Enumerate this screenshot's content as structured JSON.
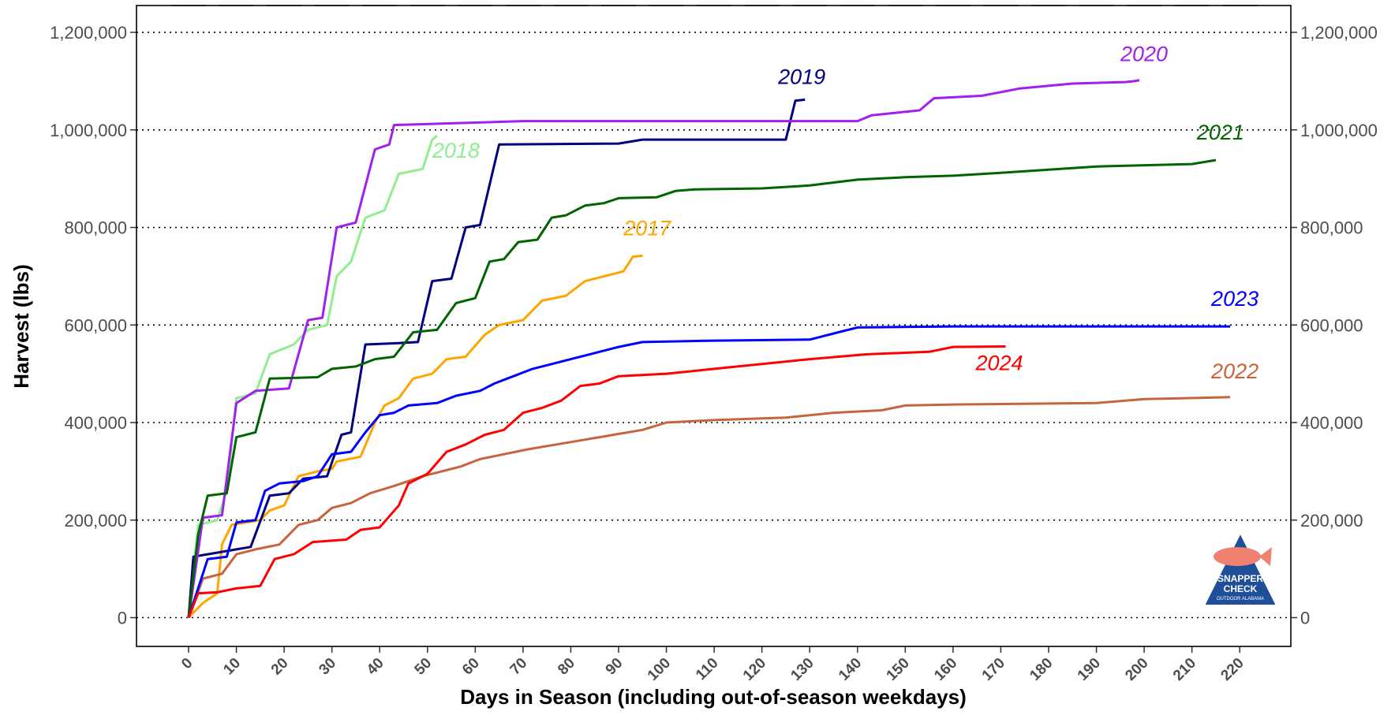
{
  "chart_data": {
    "type": "line",
    "y_label": "Harvest (lbs)",
    "x_label": "Days in Season (including out-of-season weekdays)",
    "xlim": [
      -10.9,
      230.7
    ],
    "xticks": [
      0,
      10,
      20,
      30,
      40,
      50,
      60,
      70,
      80,
      90,
      100,
      110,
      120,
      130,
      140,
      150,
      160,
      170,
      180,
      190,
      200,
      210,
      220
    ],
    "ylim": [
      -59000,
      1255000
    ],
    "yticks": [
      {
        "value": 0,
        "label": "0"
      },
      {
        "value": 200000,
        "label": "200,000"
      },
      {
        "value": 400000,
        "label": "400,000"
      },
      {
        "value": 600000,
        "label": "600,000"
      },
      {
        "value": 800000,
        "label": "800,000"
      },
      {
        "value": 1000000,
        "label": "1,000,000"
      },
      {
        "value": 1200000,
        "label": "1,200,000"
      }
    ],
    "y2lim": [
      -59000,
      1255000
    ],
    "y2ticks": [
      {
        "value": 0,
        "label": "0"
      },
      {
        "value": 200000,
        "label": "200,000"
      },
      {
        "value": 400000,
        "label": "400,000"
      },
      {
        "value": 600000,
        "label": "600,000"
      },
      {
        "value": 800000,
        "label": "800,000"
      },
      {
        "value": 1000000,
        "label": "1,000,000"
      },
      {
        "value": 1200000,
        "label": "1,200,000"
      }
    ],
    "grid": true,
    "logo": {
      "line1": "SNAPPER",
      "line2": "CHECK",
      "line3": "OUTDOOR ALABAMA"
    },
    "series": [
      {
        "name": "2017",
        "color": "#ffa500",
        "x": [
          0,
          3,
          6,
          7,
          9,
          15,
          17,
          20,
          23,
          27,
          30,
          31,
          36,
          39,
          41,
          44,
          47,
          51,
          54,
          58,
          62,
          65,
          70,
          74,
          79,
          83,
          87,
          91,
          93,
          95
        ],
        "values": [
          0,
          30000,
          50000,
          150000,
          190000,
          200000,
          220000,
          230000,
          290000,
          300000,
          305000,
          320000,
          330000,
          400000,
          435000,
          450000,
          490000,
          500000,
          530000,
          535000,
          580000,
          600000,
          610000,
          650000,
          660000,
          690000,
          700000,
          710000,
          740000,
          742000
        ]
      },
      {
        "name": "2018",
        "color": "#90ee90",
        "x": [
          0,
          2,
          6,
          8,
          10,
          14,
          17,
          22,
          25,
          29,
          31,
          34,
          37,
          41,
          44,
          49,
          51,
          52
        ],
        "values": [
          0,
          190000,
          200000,
          260000,
          450000,
          460000,
          540000,
          560000,
          590000,
          600000,
          700000,
          730000,
          820000,
          835000,
          910000,
          920000,
          980000,
          988000
        ]
      },
      {
        "name": "2019",
        "color": "#000080",
        "x": [
          0,
          1,
          4,
          7,
          10,
          13,
          17,
          21,
          24,
          29,
          32,
          34,
          37,
          44,
          48,
          51,
          55,
          58,
          61,
          65,
          90,
          95,
          125,
          127,
          129
        ],
        "values": [
          0,
          125000,
          130000,
          135000,
          140000,
          145000,
          250000,
          255000,
          285000,
          290000,
          375000,
          380000,
          560000,
          563000,
          565000,
          690000,
          695000,
          800000,
          805000,
          970000,
          972000,
          980000,
          980000,
          1060000,
          1062000
        ]
      },
      {
        "name": "2020",
        "color": "#a020f0",
        "x": [
          0,
          3,
          7,
          10,
          14,
          21,
          25,
          28,
          31,
          35,
          39,
          42,
          43,
          60,
          70,
          140,
          143,
          148,
          153,
          156,
          166,
          174,
          185,
          196,
          198,
          199
        ],
        "values": [
          0,
          205000,
          210000,
          440000,
          465000,
          470000,
          610000,
          615000,
          800000,
          810000,
          960000,
          970000,
          1010000,
          1015000,
          1018000,
          1018000,
          1030000,
          1035000,
          1040000,
          1065000,
          1070000,
          1085000,
          1095000,
          1098000,
          1100000,
          1102000
        ]
      },
      {
        "name": "2021",
        "color": "#006400",
        "x": [
          0,
          2,
          4,
          8,
          10,
          14,
          17,
          27,
          30,
          35,
          39,
          43,
          47,
          52,
          56,
          60,
          63,
          66,
          69,
          73,
          76,
          79,
          83,
          87,
          90,
          98,
          102,
          106,
          120,
          130,
          140,
          150,
          160,
          170,
          190,
          210,
          215
        ],
        "values": [
          0,
          170000,
          250000,
          255000,
          370000,
          380000,
          490000,
          493000,
          510000,
          515000,
          530000,
          535000,
          585000,
          590000,
          645000,
          655000,
          730000,
          735000,
          770000,
          775000,
          820000,
          825000,
          845000,
          850000,
          860000,
          862000,
          875000,
          878000,
          880000,
          886000,
          898000,
          903000,
          906000,
          912000,
          925000,
          930000,
          938000
        ]
      },
      {
        "name": "2022",
        "color": "#c8643c",
        "x": [
          0,
          3,
          7,
          10,
          14,
          19,
          23,
          27,
          30,
          34,
          38,
          43,
          46,
          49,
          53,
          57,
          61,
          66,
          71,
          77,
          83,
          89,
          95,
          100,
          110,
          125,
          135,
          145,
          150,
          160,
          190,
          200,
          218
        ],
        "values": [
          0,
          80000,
          90000,
          130000,
          140000,
          150000,
          190000,
          200000,
          225000,
          235000,
          255000,
          270000,
          280000,
          290000,
          300000,
          310000,
          325000,
          335000,
          345000,
          355000,
          365000,
          375000,
          385000,
          400000,
          405000,
          410000,
          420000,
          425000,
          435000,
          437000,
          440000,
          448000,
          452000
        ]
      },
      {
        "name": "2023",
        "color": "#0000ff",
        "x": [
          0,
          2,
          4,
          8,
          10,
          14,
          16,
          19,
          24,
          27,
          30,
          34,
          37,
          40,
          43,
          46,
          52,
          56,
          61,
          64,
          68,
          72,
          76,
          80,
          84,
          90,
          95,
          110,
          130,
          136,
          140,
          160,
          218
        ],
        "values": [
          0,
          60000,
          120000,
          125000,
          195000,
          200000,
          260000,
          275000,
          280000,
          290000,
          335000,
          340000,
          380000,
          415000,
          420000,
          435000,
          440000,
          455000,
          465000,
          480000,
          495000,
          510000,
          520000,
          530000,
          540000,
          555000,
          565000,
          568000,
          570000,
          585000,
          595000,
          597000,
          597000
        ]
      },
      {
        "name": "2024",
        "color": "#ff0000",
        "x": [
          0,
          2,
          6,
          10,
          15,
          18,
          22,
          26,
          33,
          36,
          40,
          44,
          46,
          50,
          54,
          58,
          62,
          66,
          70,
          74,
          78,
          82,
          86,
          90,
          100,
          110,
          120,
          130,
          142,
          155,
          160,
          171
        ],
        "values": [
          0,
          50000,
          52000,
          60000,
          65000,
          120000,
          130000,
          155000,
          160000,
          180000,
          185000,
          230000,
          275000,
          295000,
          340000,
          355000,
          375000,
          385000,
          420000,
          430000,
          445000,
          475000,
          480000,
          495000,
          500000,
          510000,
          520000,
          530000,
          540000,
          545000,
          555000,
          556000
        ]
      }
    ]
  }
}
